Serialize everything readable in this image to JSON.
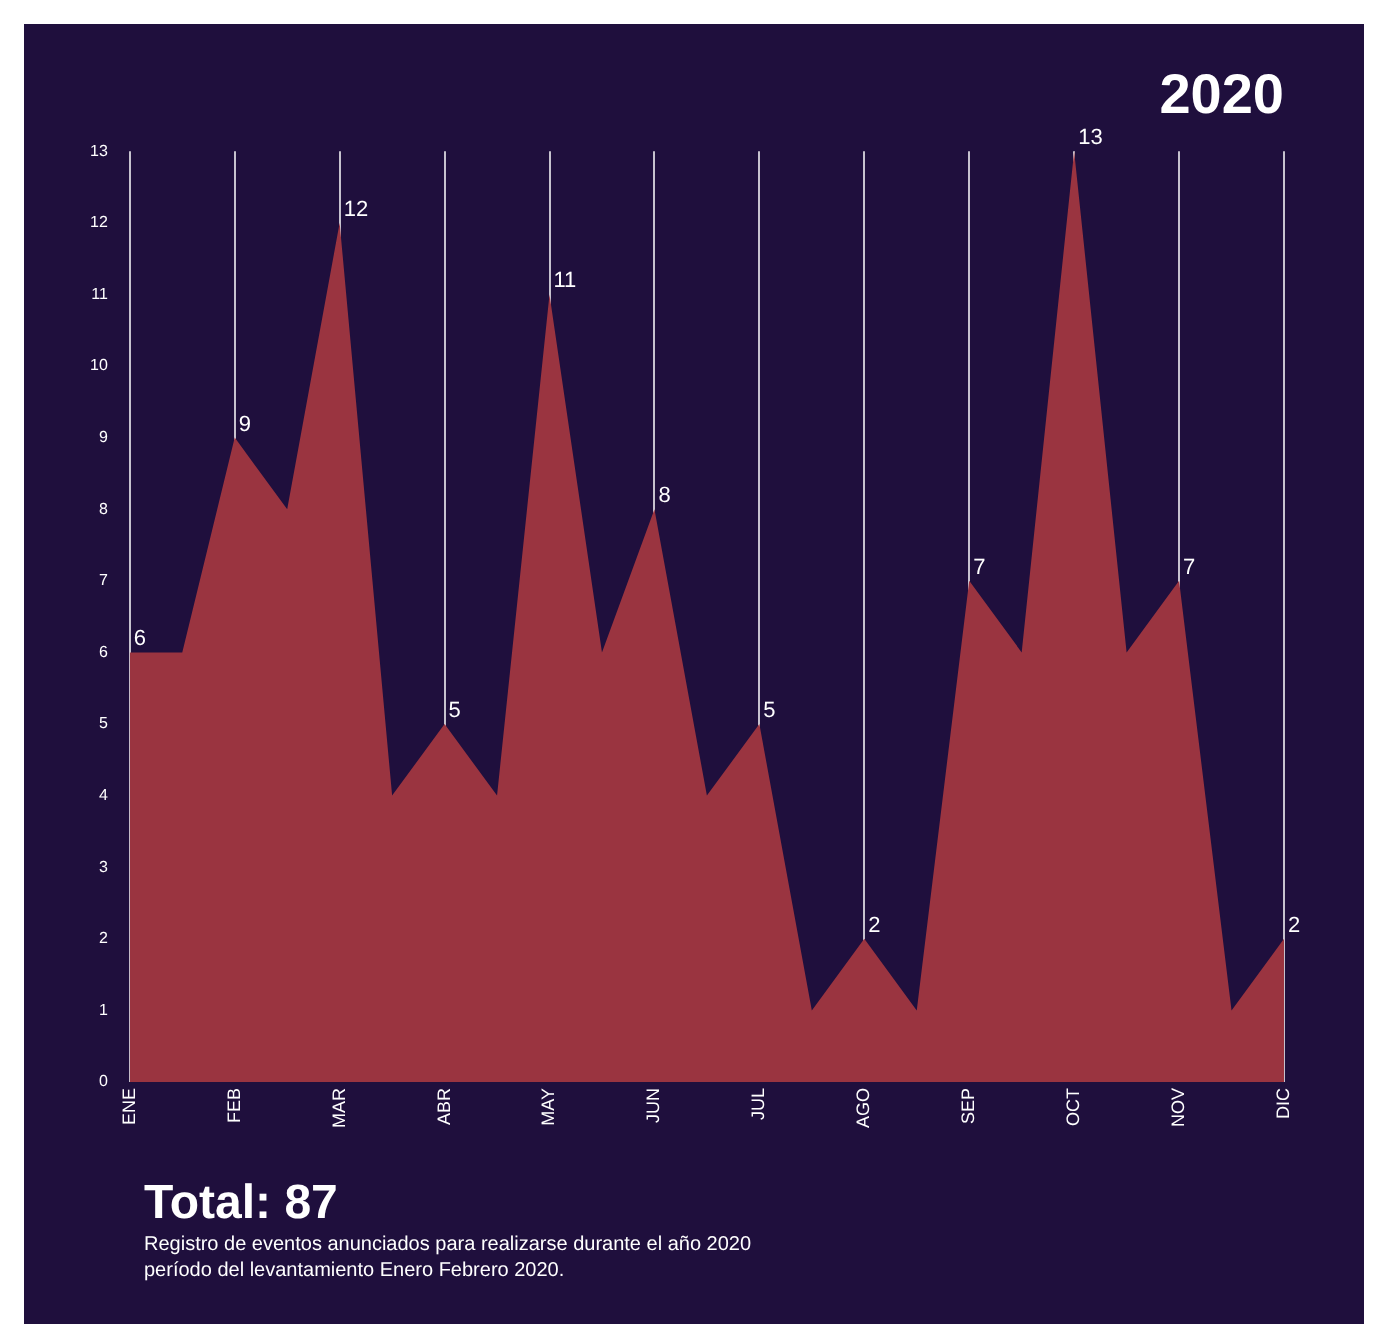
{
  "chart_data": {
    "type": "area",
    "title": "2020",
    "categories": [
      "ENE",
      null,
      "FEB",
      null,
      "MAR",
      null,
      "ABR",
      null,
      "MAY",
      null,
      "JUN",
      null,
      "JUL",
      null,
      "AGO",
      null,
      "SEP",
      null,
      "OCT",
      null,
      "NOV",
      null,
      "DIC"
    ],
    "series": [
      {
        "color": "#9a3440",
        "values": [
          6,
          6,
          9,
          8,
          12,
          4,
          5,
          4,
          11,
          6,
          8,
          4,
          5,
          1,
          2,
          1,
          7,
          6,
          13,
          6,
          7,
          1,
          2
        ],
        "value_labels": [
          "6",
          null,
          "9",
          null,
          "12",
          null,
          "5",
          null,
          "11",
          null,
          "8",
          null,
          "5",
          null,
          "2",
          null,
          "7",
          null,
          "13",
          null,
          "7",
          null,
          "2"
        ]
      }
    ],
    "ylim": [
      0,
      13
    ],
    "yticks": [
      0,
      1,
      2,
      3,
      4,
      5,
      6,
      7,
      8,
      9,
      10,
      11,
      12,
      13
    ],
    "grid": "x",
    "legend": false,
    "annotations": [
      "Total: 87",
      "Registro de eventos anunciados para realizarse durante el año 2020 período del levantamiento Enero Febrero 2020."
    ]
  }
}
